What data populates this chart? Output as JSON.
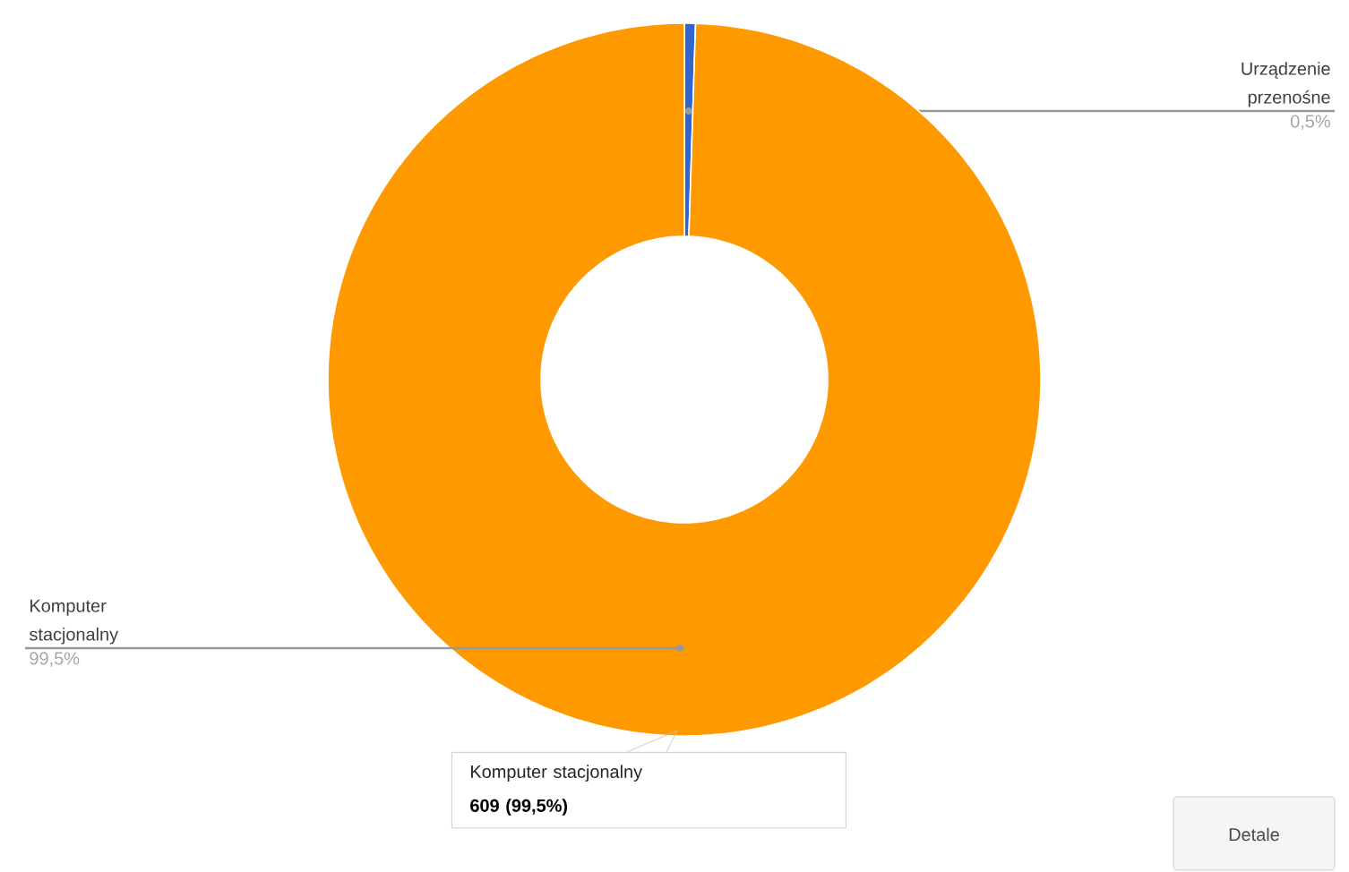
{
  "chart_data": {
    "type": "donut",
    "categories": [
      "Urządzenie przenośne",
      "Komputer stacjonalny"
    ],
    "values": [
      0.5,
      99.5
    ],
    "colors": [
      "#3366cc",
      "#ff9900"
    ],
    "value_labels": [
      "0,5%",
      "99,5%"
    ],
    "annotations": [
      "Komputer stacjonalny",
      "609 (99,5%)",
      "Detale"
    ]
  }
}
